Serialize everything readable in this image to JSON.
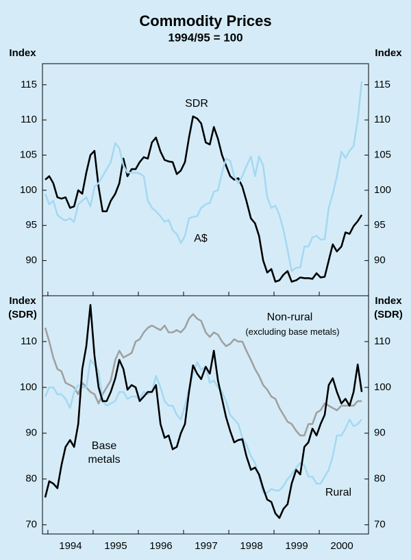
{
  "chart_data": [
    {
      "type": "line",
      "title": "Commodity Prices",
      "subtitle": "1994/95 = 100",
      "y_label": "Index",
      "xlim": [
        1993.88,
        2001.09
      ],
      "ylim": [
        85,
        118
      ],
      "yticks": [
        90,
        95,
        100,
        105,
        110,
        115
      ],
      "x": [
        1993.94,
        1994.03,
        1994.12,
        1994.21,
        1994.3,
        1994.39,
        1994.49,
        1994.58,
        1994.67,
        1994.76,
        1994.85,
        1994.94,
        1995.03,
        1995.12,
        1995.21,
        1995.3,
        1995.39,
        1995.49,
        1995.58,
        1995.67,
        1995.76,
        1995.85,
        1995.94,
        1996.03,
        1996.12,
        1996.21,
        1996.3,
        1996.39,
        1996.49,
        1996.58,
        1996.67,
        1996.76,
        1996.85,
        1996.94,
        1997.03,
        1997.12,
        1997.21,
        1997.3,
        1997.39,
        1997.49,
        1997.58,
        1997.67,
        1997.76,
        1997.85,
        1997.94,
        1998.03,
        1998.12,
        1998.21,
        1998.3,
        1998.39,
        1998.49,
        1998.58,
        1998.67,
        1998.76,
        1998.85,
        1998.94,
        1999.03,
        1999.12,
        1999.21,
        1999.3,
        1999.39,
        1999.49,
        1999.58,
        1999.67,
        1999.76,
        1999.85,
        1999.94,
        2000.03,
        2000.12,
        2000.21,
        2000.3,
        2000.39,
        2000.49,
        2000.58,
        2000.67,
        2000.76,
        2000.85,
        2000.94
      ],
      "series": [
        {
          "name": "SDR",
          "color": "#000000",
          "values": [
            101.5,
            102,
            101,
            99,
            98.8,
            99,
            97.5,
            97.7,
            100,
            99.5,
            102.5,
            105,
            105.6,
            100.5,
            97,
            97,
            98.5,
            99.5,
            101,
            104.5,
            102,
            103,
            103,
            104,
            104.7,
            104.5,
            106.8,
            107.5,
            105.5,
            104.3,
            104.1,
            104,
            102.3,
            102.8,
            104,
            107.5,
            110.5,
            110.2,
            109.5,
            106.8,
            106.5,
            109,
            107.3,
            105,
            103.5,
            102,
            101.5,
            101.7,
            100.5,
            98.5,
            96,
            95.3,
            93.5,
            90,
            88.3,
            88.8,
            87,
            87.2,
            88,
            88.5,
            87,
            87.2,
            87.6,
            87.5,
            87.5,
            87.4,
            88.2,
            87.6,
            87.7,
            90,
            92.3,
            91.3,
            92,
            94,
            93.8,
            94.9,
            95.6,
            96.5
          ]
        },
        {
          "name": "A$",
          "color": "#a6d8f2",
          "values": [
            99.5,
            98,
            98.5,
            96.5,
            96,
            95.7,
            96,
            95.5,
            98,
            98.5,
            99,
            97.7,
            100.5,
            101,
            102,
            103,
            104,
            106.7,
            106,
            103.5,
            102.5,
            102.5,
            102.5,
            102.4,
            102,
            98.5,
            97.5,
            97,
            96.3,
            95.5,
            95.8,
            94.3,
            93.8,
            92.5,
            93.5,
            96,
            96.2,
            96.3,
            97.5,
            98,
            98.2,
            99.8,
            100,
            102.5,
            104.5,
            104.2,
            102,
            101,
            102,
            103.4,
            104.8,
            102,
            104.8,
            103.5,
            99,
            97.5,
            97.8,
            96.5,
            94.3,
            91.5,
            88.5,
            89,
            89,
            92,
            92,
            93.3,
            93.5,
            93,
            93,
            97.5,
            99.5,
            102,
            105.5,
            104.6,
            105.6,
            106.3,
            110,
            115.5
          ]
        }
      ]
    },
    {
      "type": "line",
      "y_label": "Index (SDR)",
      "annotation": "(excluding base metals)",
      "xlim": [
        1993.88,
        2001.09
      ],
      "ylim": [
        68,
        120
      ],
      "yticks": [
        70,
        80,
        90,
        100,
        110
      ],
      "xticks": [
        1994,
        1995,
        1996,
        1997,
        1998,
        1999,
        2000
      ],
      "x": [
        1993.94,
        1994.03,
        1994.12,
        1994.21,
        1994.3,
        1994.39,
        1994.49,
        1994.58,
        1994.67,
        1994.76,
        1994.85,
        1994.94,
        1995.03,
        1995.12,
        1995.21,
        1995.3,
        1995.39,
        1995.49,
        1995.58,
        1995.67,
        1995.76,
        1995.85,
        1995.94,
        1996.03,
        1996.12,
        1996.21,
        1996.3,
        1996.39,
        1996.49,
        1996.58,
        1996.67,
        1996.76,
        1996.85,
        1996.94,
        1997.03,
        1997.12,
        1997.21,
        1997.3,
        1997.39,
        1997.49,
        1997.58,
        1997.67,
        1997.76,
        1997.85,
        1997.94,
        1998.03,
        1998.12,
        1998.21,
        1998.3,
        1998.39,
        1998.49,
        1998.58,
        1998.67,
        1998.76,
        1998.85,
        1998.94,
        1999.03,
        1999.12,
        1999.21,
        1999.3,
        1999.39,
        1999.49,
        1999.58,
        1999.67,
        1999.76,
        1999.85,
        1999.94,
        2000.03,
        2000.12,
        2000.21,
        2000.3,
        2000.39,
        2000.49,
        2000.58,
        2000.67,
        2000.76,
        2000.85,
        2000.94
      ],
      "series": [
        {
          "name": "Non-rural",
          "color": "#a0a0a0",
          "values": [
            113,
            110,
            106.5,
            104,
            103.5,
            101,
            100.5,
            100,
            98.5,
            101,
            100,
            99,
            98.5,
            96.5,
            98.5,
            100,
            101.5,
            106,
            108,
            106.5,
            107,
            107.5,
            110,
            110.5,
            112,
            113,
            113.5,
            113,
            112.5,
            113.5,
            112,
            112,
            112.5,
            112,
            113,
            115,
            116,
            115,
            114.5,
            112,
            111,
            112,
            111.5,
            110,
            109,
            109.5,
            110.5,
            110,
            110,
            108,
            106,
            104,
            102.5,
            100.5,
            99.5,
            98,
            97.5,
            95.5,
            94,
            92.5,
            92,
            90.5,
            89.5,
            89.5,
            92,
            92,
            94.5,
            95,
            96.5,
            96,
            95.5,
            95,
            96,
            96,
            96,
            96,
            97,
            97
          ]
        },
        {
          "name": "Rural",
          "color": "#a6d8f2",
          "values": [
            98,
            100,
            100,
            98.5,
            98.5,
            97.5,
            95.5,
            99,
            100.5,
            100,
            100,
            106,
            105,
            103.5,
            97,
            96,
            96.5,
            97,
            99,
            99,
            97.5,
            98,
            98,
            97.5,
            99,
            98.5,
            99,
            102.5,
            100,
            97,
            96,
            96,
            94,
            93,
            96,
            99.5,
            103,
            105.5,
            103.8,
            104.5,
            101,
            101.5,
            100,
            99,
            97,
            94,
            93,
            92,
            89,
            87.5,
            85,
            83.5,
            80.5,
            77,
            77,
            77.8,
            77.5,
            77.5,
            78.5,
            80,
            81,
            82.5,
            83.5,
            83,
            80.5,
            80.5,
            79,
            79,
            80.5,
            82,
            85,
            89.5,
            89.5,
            91,
            93,
            91.5,
            92,
            93
          ]
        },
        {
          "name": "Base metals",
          "color": "#000000",
          "values": [
            76,
            79.5,
            79,
            78,
            83,
            87,
            88.5,
            87,
            92,
            104,
            109,
            118,
            107,
            100,
            97,
            97,
            99,
            102,
            106,
            104,
            99.5,
            100.5,
            100,
            97,
            98,
            99,
            99,
            100.5,
            92,
            89,
            89.5,
            86.5,
            87,
            90,
            92,
            99,
            104.8,
            103,
            101.8,
            104.5,
            103,
            108,
            101.5,
            97.5,
            93.5,
            90.5,
            88,
            88.5,
            88.7,
            85,
            82,
            82.5,
            81,
            78,
            75.5,
            75,
            72.5,
            71.5,
            73.5,
            74.5,
            79,
            82,
            81,
            87,
            88,
            91,
            89.5,
            92,
            94,
            100.5,
            102,
            99,
            96.5,
            97.5,
            96,
            99,
            105,
            99
          ]
        }
      ]
    }
  ]
}
